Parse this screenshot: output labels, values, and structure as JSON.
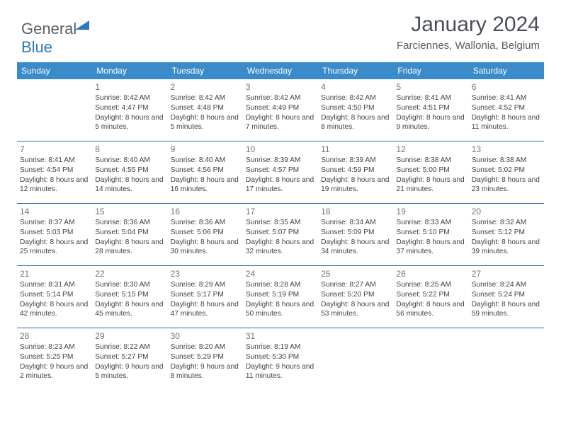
{
  "logo": {
    "part1": "General",
    "part2": "Blue"
  },
  "header": {
    "title": "January 2024",
    "location": "Farciennes, Wallonia, Belgium"
  },
  "theme": {
    "header_bg": "#3a8bca",
    "header_fg": "#ffffff",
    "row_divider": "#2f6aa0",
    "text_color": "#3d434a",
    "daynum_color": "#6d747c",
    "title_color": "#4a4f57"
  },
  "dow": [
    "Sunday",
    "Monday",
    "Tuesday",
    "Wednesday",
    "Thursday",
    "Friday",
    "Saturday"
  ],
  "weeks": [
    [
      null,
      {
        "n": "1",
        "sr": "8:42 AM",
        "ss": "4:47 PM",
        "dl": "8 hours and 5 minutes."
      },
      {
        "n": "2",
        "sr": "8:42 AM",
        "ss": "4:48 PM",
        "dl": "8 hours and 5 minutes."
      },
      {
        "n": "3",
        "sr": "8:42 AM",
        "ss": "4:49 PM",
        "dl": "8 hours and 7 minutes."
      },
      {
        "n": "4",
        "sr": "8:42 AM",
        "ss": "4:50 PM",
        "dl": "8 hours and 8 minutes."
      },
      {
        "n": "5",
        "sr": "8:41 AM",
        "ss": "4:51 PM",
        "dl": "8 hours and 9 minutes."
      },
      {
        "n": "6",
        "sr": "8:41 AM",
        "ss": "4:52 PM",
        "dl": "8 hours and 11 minutes."
      }
    ],
    [
      {
        "n": "7",
        "sr": "8:41 AM",
        "ss": "4:54 PM",
        "dl": "8 hours and 12 minutes."
      },
      {
        "n": "8",
        "sr": "8:40 AM",
        "ss": "4:55 PM",
        "dl": "8 hours and 14 minutes."
      },
      {
        "n": "9",
        "sr": "8:40 AM",
        "ss": "4:56 PM",
        "dl": "8 hours and 16 minutes."
      },
      {
        "n": "10",
        "sr": "8:39 AM",
        "ss": "4:57 PM",
        "dl": "8 hours and 17 minutes."
      },
      {
        "n": "11",
        "sr": "8:39 AM",
        "ss": "4:59 PM",
        "dl": "8 hours and 19 minutes."
      },
      {
        "n": "12",
        "sr": "8:38 AM",
        "ss": "5:00 PM",
        "dl": "8 hours and 21 minutes."
      },
      {
        "n": "13",
        "sr": "8:38 AM",
        "ss": "5:02 PM",
        "dl": "8 hours and 23 minutes."
      }
    ],
    [
      {
        "n": "14",
        "sr": "8:37 AM",
        "ss": "5:03 PM",
        "dl": "8 hours and 25 minutes."
      },
      {
        "n": "15",
        "sr": "8:36 AM",
        "ss": "5:04 PM",
        "dl": "8 hours and 28 minutes."
      },
      {
        "n": "16",
        "sr": "8:36 AM",
        "ss": "5:06 PM",
        "dl": "8 hours and 30 minutes."
      },
      {
        "n": "17",
        "sr": "8:35 AM",
        "ss": "5:07 PM",
        "dl": "8 hours and 32 minutes."
      },
      {
        "n": "18",
        "sr": "8:34 AM",
        "ss": "5:09 PM",
        "dl": "8 hours and 34 minutes."
      },
      {
        "n": "19",
        "sr": "8:33 AM",
        "ss": "5:10 PM",
        "dl": "8 hours and 37 minutes."
      },
      {
        "n": "20",
        "sr": "8:32 AM",
        "ss": "5:12 PM",
        "dl": "8 hours and 39 minutes."
      }
    ],
    [
      {
        "n": "21",
        "sr": "8:31 AM",
        "ss": "5:14 PM",
        "dl": "8 hours and 42 minutes."
      },
      {
        "n": "22",
        "sr": "8:30 AM",
        "ss": "5:15 PM",
        "dl": "8 hours and 45 minutes."
      },
      {
        "n": "23",
        "sr": "8:29 AM",
        "ss": "5:17 PM",
        "dl": "8 hours and 47 minutes."
      },
      {
        "n": "24",
        "sr": "8:28 AM",
        "ss": "5:19 PM",
        "dl": "8 hours and 50 minutes."
      },
      {
        "n": "25",
        "sr": "8:27 AM",
        "ss": "5:20 PM",
        "dl": "8 hours and 53 minutes."
      },
      {
        "n": "26",
        "sr": "8:25 AM",
        "ss": "5:22 PM",
        "dl": "8 hours and 56 minutes."
      },
      {
        "n": "27",
        "sr": "8:24 AM",
        "ss": "5:24 PM",
        "dl": "8 hours and 59 minutes."
      }
    ],
    [
      {
        "n": "28",
        "sr": "8:23 AM",
        "ss": "5:25 PM",
        "dl": "9 hours and 2 minutes."
      },
      {
        "n": "29",
        "sr": "8:22 AM",
        "ss": "5:27 PM",
        "dl": "9 hours and 5 minutes."
      },
      {
        "n": "30",
        "sr": "8:20 AM",
        "ss": "5:29 PM",
        "dl": "9 hours and 8 minutes."
      },
      {
        "n": "31",
        "sr": "8:19 AM",
        "ss": "5:30 PM",
        "dl": "9 hours and 11 minutes."
      },
      null,
      null,
      null
    ]
  ],
  "labels": {
    "sunrise": "Sunrise:",
    "sunset": "Sunset:",
    "daylight": "Daylight:"
  }
}
